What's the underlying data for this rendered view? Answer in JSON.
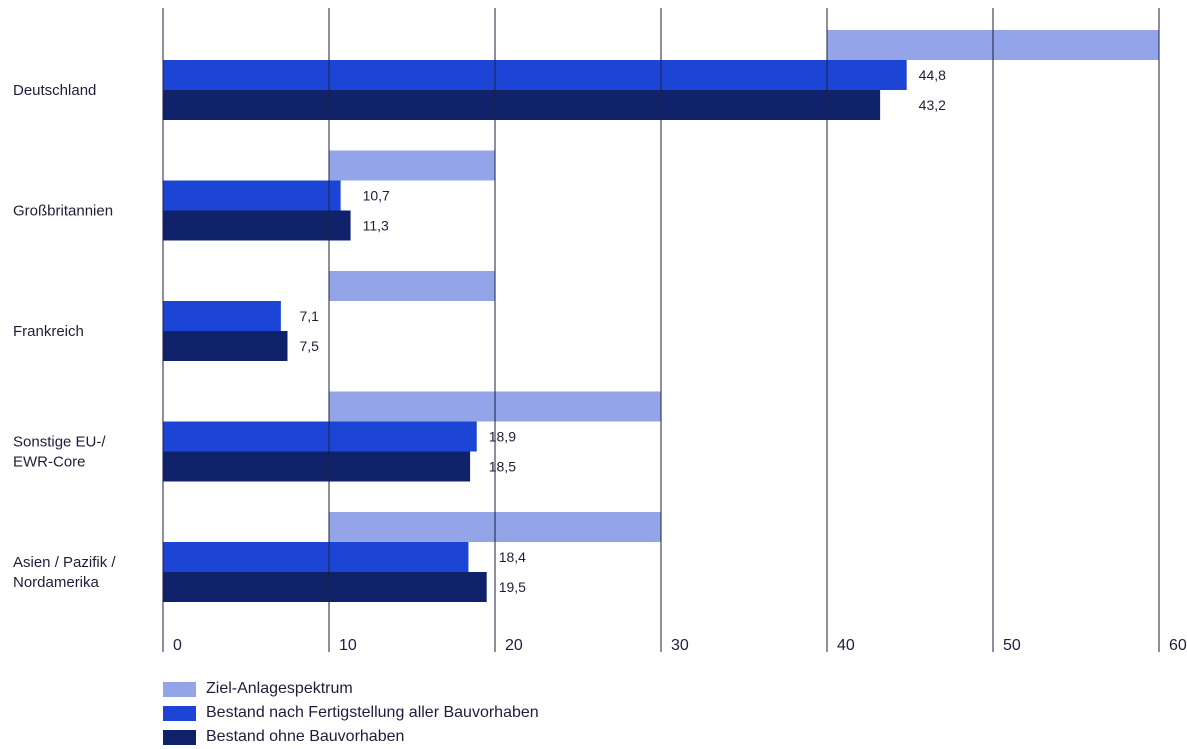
{
  "chart_data": {
    "type": "bar",
    "orientation": "horizontal",
    "xlim": [
      0,
      60
    ],
    "x_ticks": [
      0,
      10,
      20,
      30,
      40,
      50,
      60
    ],
    "grid": true,
    "legend_position": "bottom-left",
    "categories": [
      {
        "lines": [
          "Deutschland"
        ]
      },
      {
        "lines": [
          "Großbritannien"
        ]
      },
      {
        "lines": [
          "Frankreich"
        ]
      },
      {
        "lines": [
          "Sonstige EU-/",
          "EWR-Core"
        ]
      },
      {
        "lines": [
          "Asien / Pazifik /",
          "Nordamerika"
        ]
      }
    ],
    "ranges": {
      "name": "Ziel-Anlagespektrum",
      "color": "#93a4e8",
      "values": [
        [
          40,
          60
        ],
        [
          10,
          20
        ],
        [
          10,
          20
        ],
        [
          10,
          30
        ],
        [
          10,
          30
        ]
      ]
    },
    "series": [
      {
        "name": "Bestand nach Fertigstellung aller Bauvorhaben",
        "color": "#1c45d6",
        "values": [
          44.8,
          10.7,
          7.1,
          18.9,
          18.4
        ],
        "labels": [
          "44,8",
          "10,7",
          "7,1",
          "18,9",
          "18,4"
        ]
      },
      {
        "name": "Bestand ohne Bauvorhaben",
        "color": "#10226a",
        "values": [
          43.2,
          11.3,
          7.5,
          18.5,
          19.5
        ],
        "labels": [
          "43,2",
          "11,3",
          "7,5",
          "18,5",
          "19,5"
        ]
      }
    ],
    "gridline_color": "#1e1e3c"
  },
  "legend": {
    "items": [
      {
        "label": "Ziel-Anlagespektrum",
        "color": "#93a4e8"
      },
      {
        "label": "Bestand nach Fertigstellung aller Bauvorhaben",
        "color": "#1c45d6"
      },
      {
        "label": "Bestand ohne Bauvorhaben",
        "color": "#10226a"
      }
    ]
  }
}
